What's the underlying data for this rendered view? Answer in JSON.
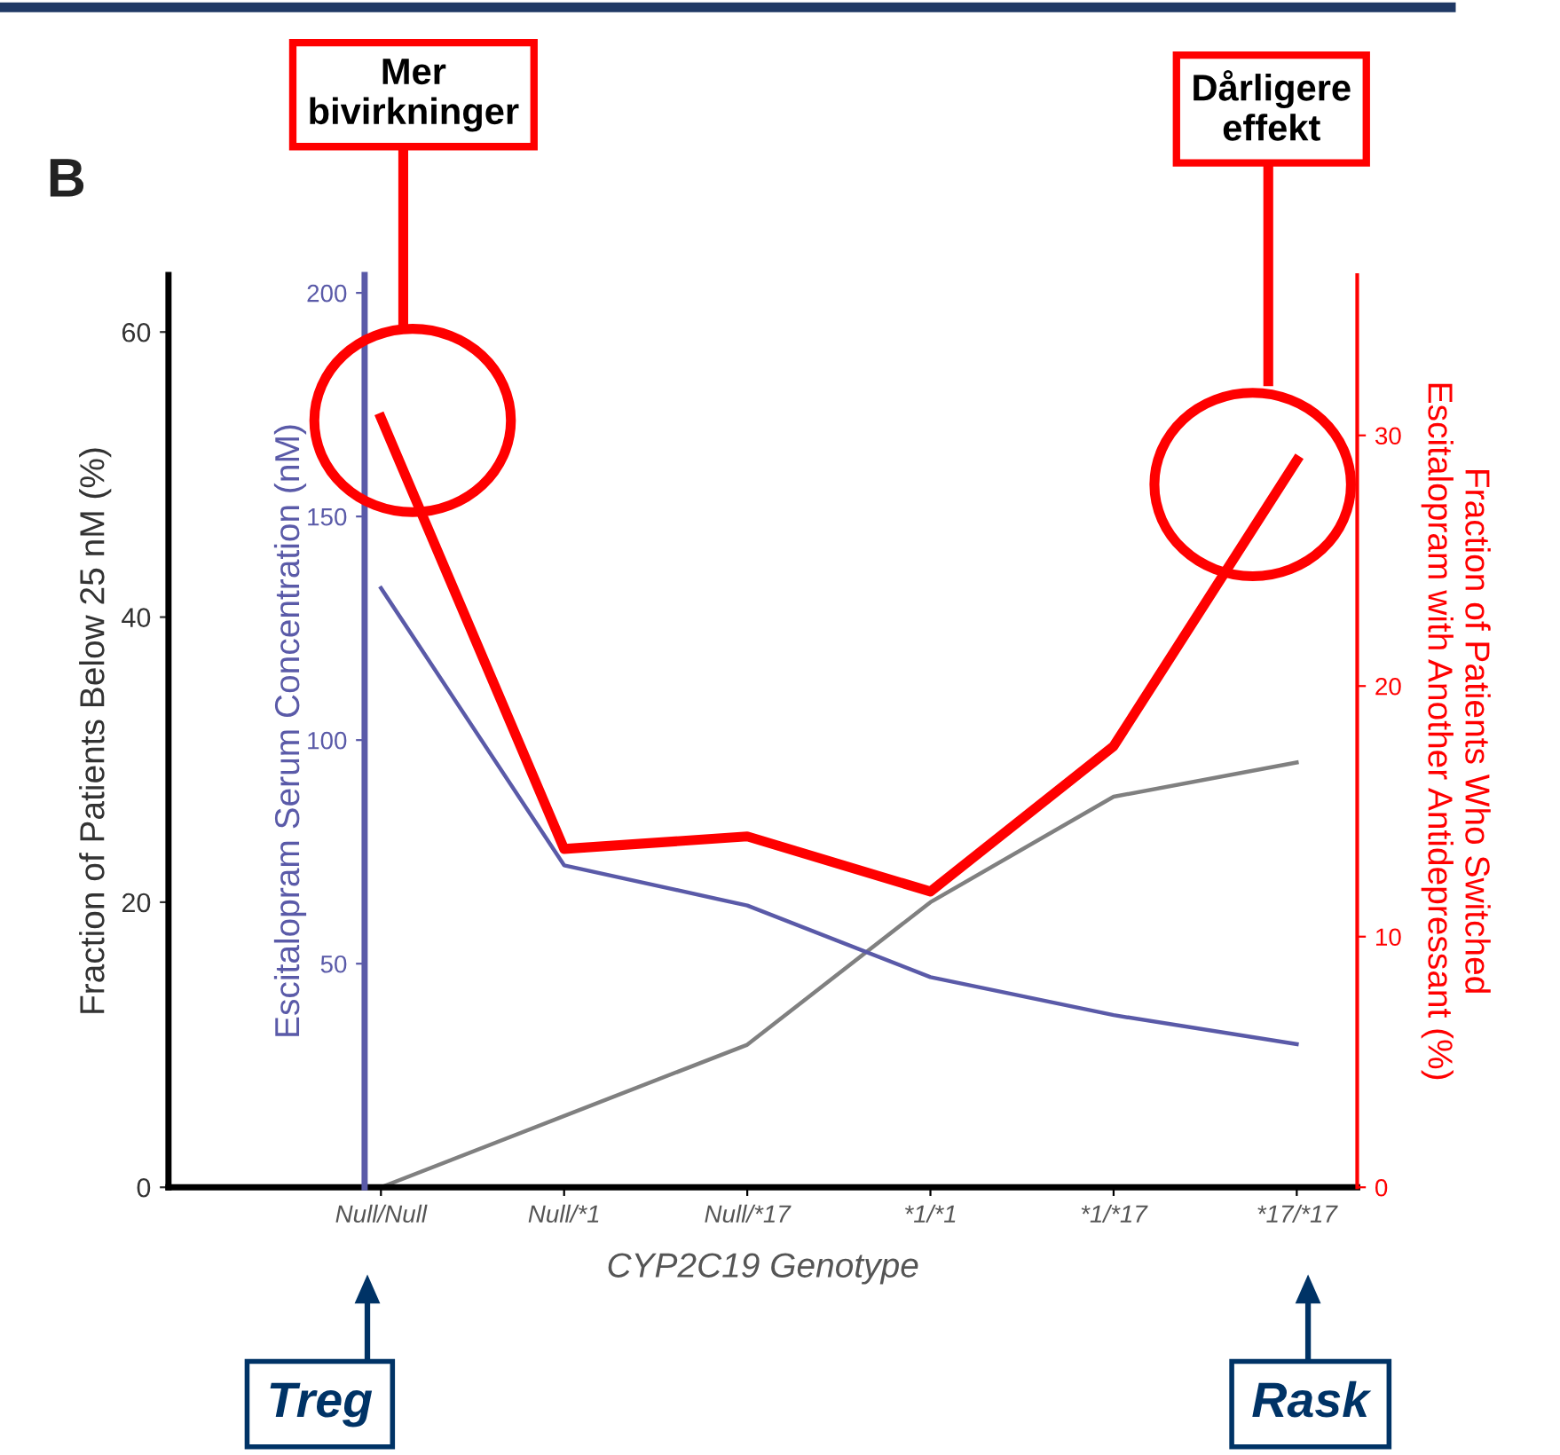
{
  "chart_data": {
    "type": "line",
    "categories": [
      "Null/Null",
      "Null/*1",
      "Null/*17",
      "*1/*1",
      "*1/*17",
      "*17/*17"
    ],
    "series": [
      {
        "color": "#808080",
        "axis": "y",
        "values": [
          0,
          5,
          10,
          20,
          27.4,
          29.8
        ]
      },
      {
        "color": "#5a5aa8",
        "axis": "y3",
        "values": [
          134,
          72,
          63,
          47,
          38.5,
          32
        ]
      },
      {
        "color": "#ff0000",
        "axis": "y2",
        "values": [
          30.7,
          13.5,
          14,
          11.8,
          17.6,
          29
        ]
      }
    ],
    "xlabel": "CYP2C19 Genotype",
    "ylabel": "Fraction of Patients Below 25 nM (%)",
    "y2label": "Fraction of Patients Who Switched\nEscitalopram with Another Antidepressant (%)",
    "y3label": "Escitalopram Serum Concentration (nM)",
    "ylim": [
      0,
      64
    ],
    "yticks": [
      0,
      20,
      40,
      60
    ],
    "y2lim": [
      0,
      36.4
    ],
    "y2ticks": [
      0,
      10,
      20,
      30
    ],
    "y3lim": [
      0,
      204
    ],
    "y3ticks": [
      50,
      100,
      150,
      200
    ],
    "annotations": [
      "B",
      "Mer\nbivirkninger",
      "Dårligere\neffekt",
      "Treg",
      "Rask"
    ]
  }
}
